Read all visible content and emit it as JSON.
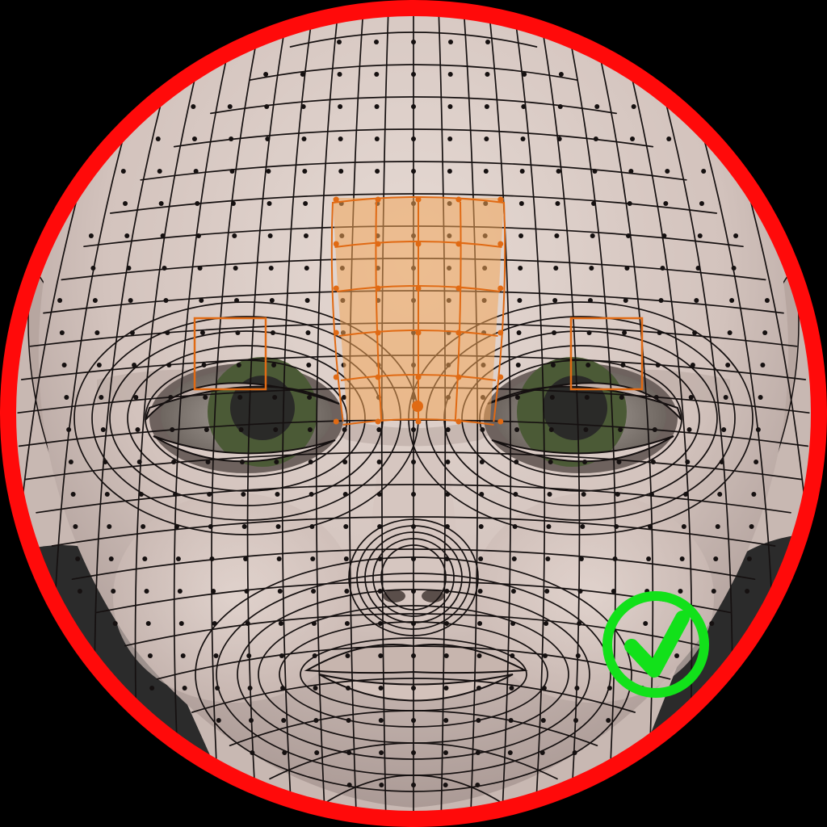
{
  "colors": {
    "background": "#000000",
    "frame_ring": "#ff0a0a",
    "skin_light": "#e2d6d0",
    "skin_mid": "#c9b8b2",
    "skin_shadow": "#8f7f7b",
    "wire": "#151010",
    "selection_fill": "#f3a55a",
    "selection_edge": "#e06a14",
    "iris": "#4b5a36",
    "pupil": "#2a2a28",
    "sclera": "#9a938c",
    "check_green": "#12e11a",
    "backdrop": "#2b2b2b"
  },
  "icons": {
    "frame": "circular-frame",
    "approval": "checkmark-circle-icon",
    "vertex_marker": "square-marker"
  },
  "scene": {
    "subject": "topology-wireframe-head",
    "selected_region": "forehead-between-brows",
    "markers": 2,
    "status": "approved"
  }
}
